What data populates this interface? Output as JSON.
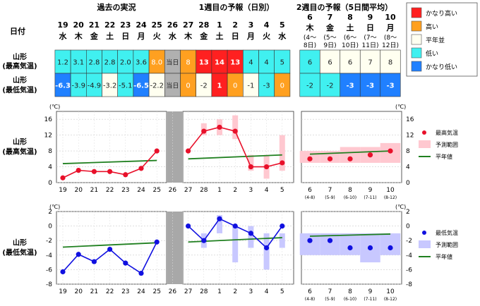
{
  "header": {
    "past_label": "過去の実況",
    "week1_label": "1週目の予報（日別）",
    "week2_label": "2週目の予報（5日間平均）",
    "date_label": "日付"
  },
  "days": [
    {
      "d": "19",
      "w": "水"
    },
    {
      "d": "20",
      "w": "木"
    },
    {
      "d": "21",
      "w": "金"
    },
    {
      "d": "22",
      "w": "土"
    },
    {
      "d": "23",
      "w": "日"
    },
    {
      "d": "24",
      "w": "月"
    },
    {
      "d": "25",
      "w": "火"
    },
    {
      "d": "26",
      "w": "水"
    },
    {
      "d": "27",
      "w": "木"
    },
    {
      "d": "28",
      "w": "金"
    },
    {
      "d": "1",
      "w": "土"
    },
    {
      "d": "2",
      "w": "日"
    },
    {
      "d": "3",
      "w": "月"
    },
    {
      "d": "4",
      "w": "火"
    },
    {
      "d": "5",
      "w": "水"
    }
  ],
  "week2_days": [
    {
      "d": "6",
      "w": "木",
      "r1": "(4～",
      "r2": "8日)"
    },
    {
      "d": "7",
      "w": "金",
      "r1": "(5～",
      "r2": "9日)"
    },
    {
      "d": "8",
      "w": "土",
      "r1": "(6～",
      "r2": "10日)"
    },
    {
      "d": "9",
      "w": "日",
      "r1": "(7～",
      "r2": "11日)"
    },
    {
      "d": "10",
      "w": "月",
      "r1": "(8～",
      "r2": "12日)"
    }
  ],
  "rows": {
    "max_label_1": "山形",
    "max_label_2": "(最高気温)",
    "min_label_1": "山形",
    "min_label_2": "(最低気温)",
    "max_cells": [
      {
        "t": "1.2",
        "c": "low"
      },
      {
        "t": "3.1",
        "c": "low"
      },
      {
        "t": "2.8",
        "c": "low"
      },
      {
        "t": "2.8",
        "c": "low"
      },
      {
        "t": "2.0",
        "c": "low"
      },
      {
        "t": "3.6",
        "c": "low"
      },
      {
        "t": "8.0",
        "c": "high"
      },
      {
        "t": "当日",
        "c": "today"
      },
      {
        "t": "8",
        "c": "high"
      },
      {
        "t": "13",
        "c": "vhigh"
      },
      {
        "t": "14",
        "c": "vhigh"
      },
      {
        "t": "13",
        "c": "vhigh"
      },
      {
        "t": "4",
        "c": "low"
      },
      {
        "t": "4",
        "c": "low"
      },
      {
        "t": "5",
        "c": "low"
      }
    ],
    "max_week2": [
      {
        "t": "6",
        "c": "low"
      },
      {
        "t": "6",
        "c": "normal"
      },
      {
        "t": "6",
        "c": "normal"
      },
      {
        "t": "7",
        "c": "normal"
      },
      {
        "t": "8",
        "c": "normal"
      }
    ],
    "min_cells": [
      {
        "t": "-6.3",
        "c": "vlow"
      },
      {
        "t": "-3.9",
        "c": "low"
      },
      {
        "t": "-4.9",
        "c": "low"
      },
      {
        "t": "-3.2",
        "c": "normal"
      },
      {
        "t": "-5.1",
        "c": "low"
      },
      {
        "t": "-6.5",
        "c": "vlow"
      },
      {
        "t": "-2.2",
        "c": "normal"
      },
      {
        "t": "当日",
        "c": "today"
      },
      {
        "t": "0",
        "c": "high"
      },
      {
        "t": "-2",
        "c": "normal"
      },
      {
        "t": "1",
        "c": "vhigh"
      },
      {
        "t": "0",
        "c": "high"
      },
      {
        "t": "-1",
        "c": "normal"
      },
      {
        "t": "-3",
        "c": "low"
      },
      {
        "t": "0",
        "c": "high"
      }
    ],
    "min_week2": [
      {
        "t": "-2",
        "c": "low"
      },
      {
        "t": "-2",
        "c": "low"
      },
      {
        "t": "-3",
        "c": "vlow"
      },
      {
        "t": "-3",
        "c": "vlow"
      },
      {
        "t": "-3",
        "c": "vlow"
      }
    ]
  },
  "legend_top": [
    {
      "label": "かなり高い",
      "color": "#ff2020"
    },
    {
      "label": "高い",
      "color": "#ffa020"
    },
    {
      "label": "平年並",
      "color": "#fffff0"
    },
    {
      "label": "低い",
      "color": "#40f0f0"
    },
    {
      "label": "かなり低い",
      "color": "#2080ff"
    }
  ],
  "colors": {
    "vhigh": "#ff2020",
    "high": "#ffa020",
    "normal": "#fffff0",
    "low": "#40f0f0",
    "vlow": "#2080ff",
    "today": "#b0b0b0",
    "max_line": "#e8102a",
    "max_band": "#ffc8d0",
    "min_line": "#1010e0",
    "min_band": "#c8c8ff",
    "normal_line": "#208020"
  },
  "chart_data": [
    {
      "type": "line",
      "row_label_1": "山形",
      "row_label_2": "(最高気温)",
      "unit": "(℃)",
      "ylim": [
        0,
        18
      ],
      "yticks": [
        0,
        4,
        8,
        12,
        16
      ],
      "x": [
        "19",
        "20",
        "21",
        "22",
        "23",
        "24",
        "25",
        "26",
        "27",
        "28",
        "1",
        "2",
        "3",
        "4",
        "5"
      ],
      "observed": [
        1.2,
        3.1,
        2.8,
        2.8,
        2.0,
        3.6,
        8.0,
        null
      ],
      "forecast": [
        8,
        13,
        14,
        13,
        4,
        4,
        5
      ],
      "forecast_range": [
        null,
        [
          12,
          15
        ],
        [
          12,
          16
        ],
        [
          11,
          17
        ],
        [
          3,
          7
        ],
        [
          1,
          7
        ],
        [
          3,
          12
        ]
      ],
      "normal_past": [
        4.8,
        5.6
      ],
      "normal_week1": [
        6.0,
        7.0
      ],
      "week2_x": [
        "6",
        "7",
        "8",
        "9",
        "10"
      ],
      "week2_sub": [
        "(4-8)",
        "(5-9)",
        "(6-10)",
        "(7-11)",
        "(8-12)"
      ],
      "week2_values": [
        6,
        6,
        6,
        7,
        8
      ],
      "week2_range": [
        [
          5,
          8
        ],
        [
          5,
          8
        ],
        [
          5,
          9
        ],
        [
          5,
          9
        ],
        [
          5,
          10
        ]
      ],
      "week2_normal": [
        7.2,
        8.0
      ],
      "legend": [
        "最高気温",
        "予測範囲",
        "平年値"
      ]
    },
    {
      "type": "line",
      "row_label_1": "山形",
      "row_label_2": "(最低気温)",
      "unit": "(℃)",
      "ylim": [
        -8,
        2
      ],
      "yticks": [
        -8,
        -6,
        -4,
        -2,
        0,
        2
      ],
      "x": [
        "19",
        "20",
        "21",
        "22",
        "23",
        "24",
        "25",
        "26",
        "27",
        "28",
        "1",
        "2",
        "3",
        "4",
        "5"
      ],
      "observed": [
        -6.3,
        -3.9,
        -4.9,
        -3.2,
        -5.1,
        -6.5,
        -2.2,
        null
      ],
      "forecast": [
        0,
        -2,
        1,
        0,
        -1,
        -3,
        0
      ],
      "forecast_range": [
        null,
        [
          -3,
          -1
        ],
        [
          -1,
          1.5
        ],
        [
          -5,
          0
        ],
        [
          -3,
          0
        ],
        [
          -6,
          -1
        ],
        [
          -3,
          -1
        ]
      ],
      "normal_past": [
        -2.9,
        -2.3
      ],
      "normal_week1": [
        -2.2,
        -1.6
      ],
      "week2_x": [
        "6",
        "7",
        "8",
        "9",
        "10"
      ],
      "week2_sub": [
        "(4-8)",
        "(5-9)",
        "(6-10)",
        "(7-11)",
        "(8-12)"
      ],
      "week2_values": [
        -2,
        -2,
        -3,
        -3,
        -3
      ],
      "week2_range": [
        [
          -4,
          -1
        ],
        [
          -4,
          -1
        ],
        [
          -4,
          -1
        ],
        [
          -5,
          -1
        ],
        [
          -4,
          -1
        ]
      ],
      "week2_normal": [
        -1.4,
        -1.1
      ],
      "legend": [
        "最低気温",
        "予測範囲",
        "平年値"
      ]
    }
  ]
}
